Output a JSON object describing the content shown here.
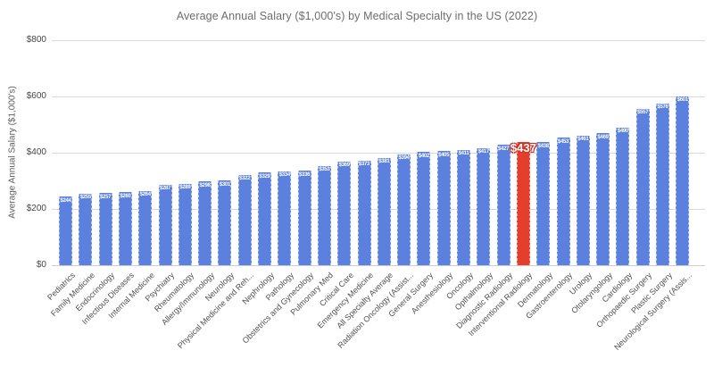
{
  "chart_data": {
    "type": "bar",
    "title": "Average Annual Salary ($1,000's) by Medical Specialty in the US (2022)",
    "ylabel": "Average Annual Salary ($1,000's)",
    "xlabel": "",
    "ylim": [
      0,
      800
    ],
    "grid": true,
    "legend": "none",
    "y_ticks": [
      {
        "value": 0,
        "label": "$0"
      },
      {
        "value": 200,
        "label": "$200"
      },
      {
        "value": 400,
        "label": "$400"
      },
      {
        "value": 600,
        "label": "$600"
      },
      {
        "value": 800,
        "label": "$800"
      }
    ],
    "categories": [
      "Pediatrics",
      "Family Medicine",
      "Endocrinology",
      "Infectious Diseases",
      "Internal Medicine",
      "Psychiatry",
      "Rheumatology",
      "Allergy/Immunology",
      "Neurology",
      "Physical Medicine and Reh...",
      "Nephrology",
      "Pathology",
      "Obstetrics and Gynecology",
      "Pulmonary Med",
      "Critical Care",
      "Emergency Medicine",
      "All Specialty Average",
      "Radiation Oncology (Assist...",
      "General Surgery",
      "Anesthesiology",
      "Oncology",
      "Opthalmology",
      "Diagnostic Radiology",
      "Interventional Radiology",
      "Dermatology",
      "Gastroenterology",
      "Urology",
      "Otolaryngology",
      "Cardiology",
      "Orthopaedic Surgery",
      "Plastic Surgery",
      "Neurological Surgery (Assis..."
    ],
    "values": [
      244,
      255,
      257,
      260,
      264,
      287,
      289,
      298,
      301,
      322,
      329,
      334,
      336,
      353,
      369,
      373,
      381,
      394,
      402,
      405,
      411,
      417,
      427,
      437,
      438,
      453,
      461,
      469,
      490,
      557,
      576,
      601
    ],
    "bar_value_labels": [
      "$244",
      "$255",
      "$257",
      "$260",
      "$264",
      "$287",
      "$289",
      "$298",
      "$301",
      "$322",
      "$329",
      "$334",
      "$336",
      "$353",
      "$369",
      "$373",
      "$381",
      "$394",
      "$402",
      "$405",
      "$411",
      "$417",
      "$427",
      "$437",
      "$438",
      "$453",
      "$461",
      "$469",
      "$490",
      "$557",
      "$576",
      "$601"
    ],
    "highlight": {
      "index": 23,
      "category": "Interventional Radiology",
      "label": "$437"
    },
    "colors": {
      "bar": "#5b80de",
      "highlight_bar": "#e43e2d",
      "bar_value_label": "#ffffff",
      "gridline": "#d9d9d9",
      "axis_text": "#474747",
      "category_text": "#4f4f4f",
      "title_text": "#6d6d6d",
      "background": "#ffffff"
    }
  }
}
